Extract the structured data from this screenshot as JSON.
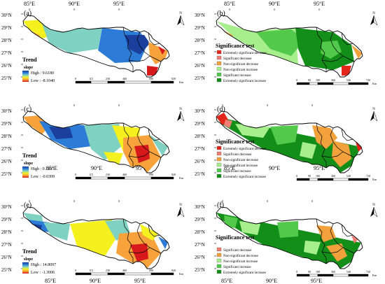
{
  "axes": {
    "top_lon": [
      "85°E",
      "90°E",
      "95°E"
    ],
    "bottom_lon": [
      "85°E",
      "90°E",
      "95°E"
    ],
    "lat": [
      "30°N",
      "29°N",
      "28°N",
      "27°N",
      "26°N",
      "25°N"
    ],
    "north_symbol": "N"
  },
  "panels": [
    {
      "id": "a",
      "label": "(a)",
      "type": "trend",
      "legend_title": "Trend",
      "legend_subtitle": "slope",
      "high": "High : 9.6180",
      "low": "Low : -8.1040",
      "scale": [
        "0",
        "115",
        "230",
        "460",
        "690",
        "920"
      ],
      "scale_unit": "Km"
    },
    {
      "id": "b",
      "label": "(b)",
      "type": "significance",
      "legend_title": "Significance test",
      "categories": [
        {
          "label": "Extremely significant decrease",
          "color": "#e32619"
        },
        {
          "label": "Significant decrease",
          "color": "#f07e76"
        },
        {
          "label": "Non-significant decrease",
          "color": "#f3a13b"
        },
        {
          "label": "Non-significant increase",
          "color": "#a7ee8d"
        },
        {
          "label": "Significant increase",
          "color": "#52c94a"
        },
        {
          "label": "Extremely significant increase",
          "color": "#138f19"
        }
      ],
      "scale": [
        "0",
        "90",
        "180",
        "360",
        "540",
        "720"
      ],
      "scale_unit": "Km"
    },
    {
      "id": "c",
      "label": "(c)",
      "type": "trend",
      "legend_title": "Trend",
      "legend_subtitle": "slope",
      "high": "High : 0.1093",
      "low": "Low : -0.0309",
      "scale": [
        "0",
        "115",
        "230",
        "460",
        "690",
        "920"
      ],
      "scale_unit": "Km"
    },
    {
      "id": "d",
      "label": "(d)",
      "type": "significance",
      "legend_title": "Significance test",
      "categories": [
        {
          "label": "Extremely significant decrease",
          "color": "#e32619"
        },
        {
          "label": "Significant decrease",
          "color": "#f07e76"
        },
        {
          "label": "Non-significant decrease",
          "color": "#f3a13b"
        },
        {
          "label": "Non-significant increase",
          "color": "#a7ee8d"
        },
        {
          "label": "Significant increase",
          "color": "#52c94a"
        },
        {
          "label": "Extremely significant increase",
          "color": "#138f19"
        }
      ],
      "scale": [
        "0",
        "90",
        "180",
        "360",
        "540",
        "720"
      ],
      "scale_unit": "Km"
    },
    {
      "id": "e",
      "label": "(e)",
      "type": "trend",
      "legend_title": "Trend",
      "legend_subtitle": "slope",
      "high": "High : 14.8097",
      "low": "Low : -1.3006",
      "scale": [
        "0",
        "115",
        "230",
        "460",
        "690",
        "920"
      ],
      "scale_unit": "Km"
    },
    {
      "id": "f",
      "label": "(f)",
      "type": "significance",
      "legend_title": "Significance test",
      "categories": [
        {
          "label": "Significant decrease",
          "color": "#f07e76"
        },
        {
          "label": "Non-significant decrease",
          "color": "#f3a13b"
        },
        {
          "label": "Non-significant increase",
          "color": "#a7ee8d"
        },
        {
          "label": "Significant increase",
          "color": "#52c94a"
        },
        {
          "label": "Extremely significant increase",
          "color": "#138f19"
        }
      ],
      "scale": [
        "0",
        "90",
        "180",
        "360",
        "540",
        "720"
      ],
      "scale_unit": "Km"
    }
  ],
  "colors": {
    "trend_ramp": [
      "#d7191c",
      "#f7a23a",
      "#f4f11e",
      "#7fd1c1",
      "#2c7bd6",
      "#1a3f9c"
    ],
    "boundary": "#000000"
  }
}
